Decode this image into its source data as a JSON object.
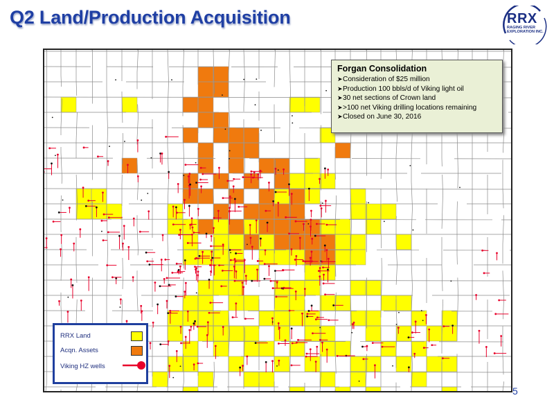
{
  "slide": {
    "title": "Q2 Land/Production Acquisition",
    "page_number": "5",
    "logo": {
      "main": "RRX",
      "sub_lines": [
        "RAGING RIVER",
        "EXPLORATION INC."
      ]
    }
  },
  "info_box": {
    "title": "Forgan Consolidation",
    "bullets": [
      "Consideration of $25 million",
      "Production 100 bbls/d  of Viking light oil",
      "30 net sections of Crown land",
      ">100 net Viking drilling locations remaining",
      "Closed on June 30, 2016"
    ]
  },
  "legend": {
    "items": [
      {
        "label": "RRX Land",
        "color": "#ffff00",
        "icon": "yellow-square"
      },
      {
        "label": "Acqn. Assets",
        "color": "#f07a0e",
        "icon": "orange-square"
      },
      {
        "label": "Viking HZ wells",
        "color": "#e8002a",
        "icon": "red-well-symbol"
      }
    ]
  },
  "colors": {
    "title": "#1f3fa4",
    "rrx_land": "#ffff00",
    "acquisition": "#f07a0e",
    "wells": "#e8002a",
    "info_bg": "#eaf0d6",
    "legend_border": "#1f3f9e"
  }
}
